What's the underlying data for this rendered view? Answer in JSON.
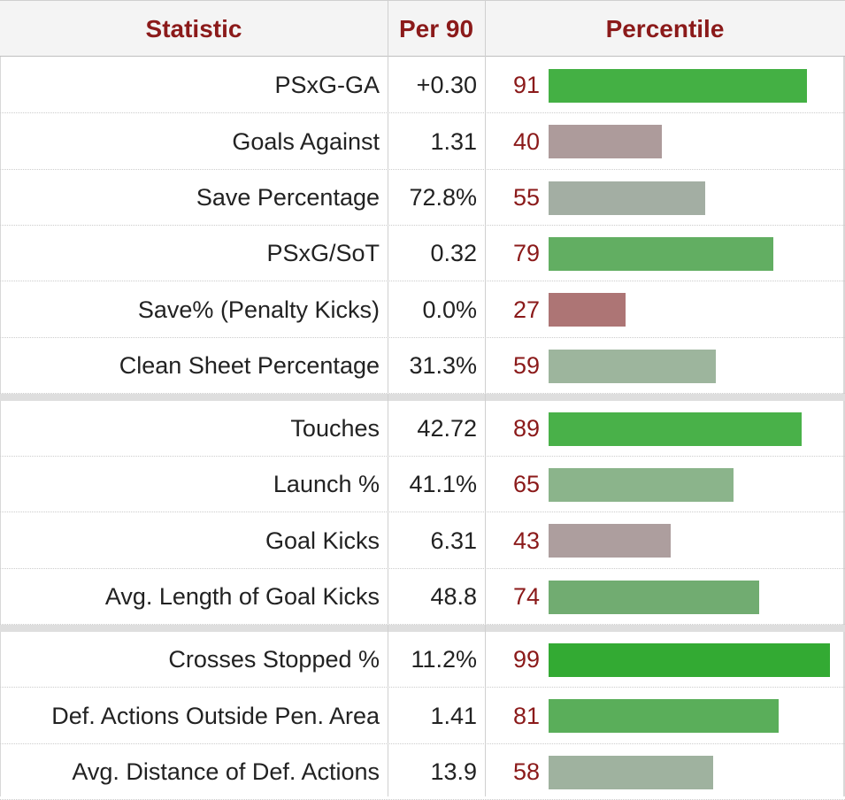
{
  "table": {
    "headers": {
      "statistic": "Statistic",
      "per90": "Per 90",
      "percentile": "Percentile"
    },
    "accent_color": "#8b1a1a",
    "groups": [
      {
        "rows": [
          {
            "stat": "PSxG-GA",
            "per90": "+0.30",
            "percentile": 91,
            "bar_color": "#44b044"
          },
          {
            "stat": "Goals Against",
            "per90": "1.31",
            "percentile": 40,
            "bar_color": "#ad9b9b"
          },
          {
            "stat": "Save Percentage",
            "per90": "72.8%",
            "percentile": 55,
            "bar_color": "#a3aea3"
          },
          {
            "stat": "PSxG/SoT",
            "per90": "0.32",
            "percentile": 79,
            "bar_color": "#62ae62"
          },
          {
            "stat": "Save% (Penalty Kicks)",
            "per90": "0.0%",
            "percentile": 27,
            "bar_color": "#ad7575"
          },
          {
            "stat": "Clean Sheet Percentage",
            "per90": "31.3%",
            "percentile": 59,
            "bar_color": "#9db59d"
          }
        ]
      },
      {
        "rows": [
          {
            "stat": "Touches",
            "per90": "42.72",
            "percentile": 89,
            "bar_color": "#49b149"
          },
          {
            "stat": "Launch %",
            "per90": "41.1%",
            "percentile": 65,
            "bar_color": "#8bb48b"
          },
          {
            "stat": "Goal Kicks",
            "per90": "6.31",
            "percentile": 43,
            "bar_color": "#ad9e9e"
          },
          {
            "stat": "Avg. Length of Goal Kicks",
            "per90": "48.8",
            "percentile": 74,
            "bar_color": "#71ac71"
          }
        ]
      },
      {
        "rows": [
          {
            "stat": "Crosses Stopped %",
            "per90": "11.2%",
            "percentile": 99,
            "bar_color": "#33aa33"
          },
          {
            "stat": "Def. Actions Outside Pen. Area",
            "per90": "1.41",
            "percentile": 81,
            "bar_color": "#5aae5a"
          },
          {
            "stat": "Avg. Distance of Def. Actions",
            "per90": "13.9",
            "percentile": 58,
            "bar_color": "#9fb29f"
          }
        ]
      }
    ]
  }
}
